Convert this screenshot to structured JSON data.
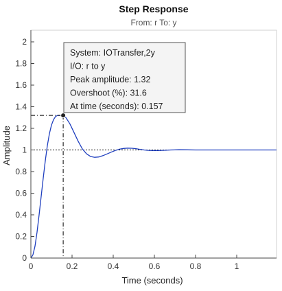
{
  "chart_data": {
    "type": "line",
    "title": "Step Response",
    "subtitle": "From: r  To: y",
    "xlabel": "Time (seconds)",
    "ylabel": "Amplitude",
    "xlim": [
      0,
      1.2
    ],
    "ylim": [
      0,
      2.1
    ],
    "xticks": [
      "0",
      "0.2",
      "0.4",
      "0.6",
      "0.8",
      "1"
    ],
    "yticks": [
      "0",
      "0.2",
      "0.4",
      "0.6",
      "0.8",
      "1",
      "1.2",
      "1.4",
      "1.6",
      "1.8",
      "2"
    ],
    "grid": false,
    "reference_line": 1,
    "series": [
      {
        "x": [
          0,
          0.01,
          0.02,
          0.03,
          0.04,
          0.05,
          0.06,
          0.07,
          0.08,
          0.09,
          0.1,
          0.11,
          0.12,
          0.13,
          0.14,
          0.157,
          0.17,
          0.19,
          0.21,
          0.23,
          0.25,
          0.27,
          0.29,
          0.31,
          0.33,
          0.35,
          0.37,
          0.39,
          0.41,
          0.43,
          0.45,
          0.47,
          0.49,
          0.51,
          0.53,
          0.55,
          0.57,
          0.59,
          0.62,
          0.65,
          0.68,
          0.72,
          0.76,
          0.8,
          0.85,
          0.9,
          1.0,
          1.1,
          1.2
        ],
        "values": [
          0,
          0.03,
          0.11,
          0.24,
          0.4,
          0.57,
          0.74,
          0.9,
          1.04,
          1.15,
          1.23,
          1.28,
          1.31,
          1.32,
          1.32,
          1.32,
          1.3,
          1.24,
          1.16,
          1.08,
          1.01,
          0.965,
          0.94,
          0.932,
          0.935,
          0.947,
          0.963,
          0.98,
          0.995,
          1.007,
          1.014,
          1.017,
          1.016,
          1.012,
          1.006,
          1.0,
          0.996,
          0.994,
          0.994,
          0.997,
          1.0,
          1.002,
          1.001,
          1.0,
          1.0,
          1.0,
          1.0,
          1.0,
          1.0
        ],
        "color": "#1f3fbf"
      }
    ],
    "marker": {
      "x": 0.157,
      "y": 1.32
    },
    "datatip": {
      "lines": [
        "System:  IOTransfer,2y",
        "I/O:  r  to  y",
        "Peak  amplitude:  1.32",
        "Overshoot  (%):  31.6",
        "At  time  (seconds):  0.157"
      ]
    }
  }
}
